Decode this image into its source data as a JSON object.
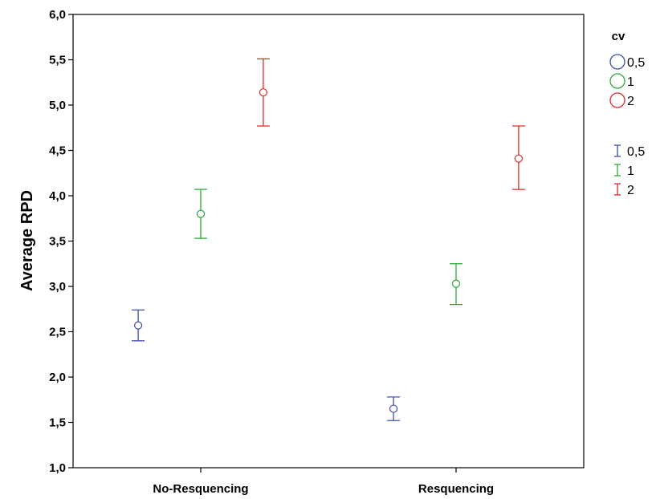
{
  "chart_data": {
    "type": "scatter",
    "title": "",
    "xlabel": "",
    "ylabel": "Average RPD",
    "categories": [
      "No-Resquencing",
      "Resquencing"
    ],
    "ylim": [
      1.0,
      6.0
    ],
    "yticks": [
      "1,0",
      "1,5",
      "2,0",
      "2,5",
      "3,0",
      "3,5",
      "4,0",
      "4,5",
      "5,0",
      "5,5",
      "6,0"
    ],
    "grid": false,
    "legend": {
      "title": "cv",
      "position": "right",
      "marker_entries": [
        "0,5",
        "1",
        "2"
      ],
      "errorbar_entries": [
        "0,5",
        "1",
        "2"
      ]
    },
    "series": [
      {
        "name": "0,5",
        "color": "#3e4fb0",
        "means": [
          2.57,
          1.65
        ],
        "lower": [
          2.4,
          1.52
        ],
        "upper": [
          2.74,
          1.78
        ]
      },
      {
        "name": "1",
        "color": "#2faa3a",
        "means": [
          3.8,
          3.03
        ],
        "lower": [
          3.53,
          2.8
        ],
        "upper": [
          4.07,
          3.25
        ]
      },
      {
        "name": "2",
        "color": "#e02828",
        "means": [
          5.14,
          4.41
        ],
        "lower": [
          4.77,
          4.07
        ],
        "upper": [
          5.51,
          4.77
        ]
      }
    ]
  }
}
